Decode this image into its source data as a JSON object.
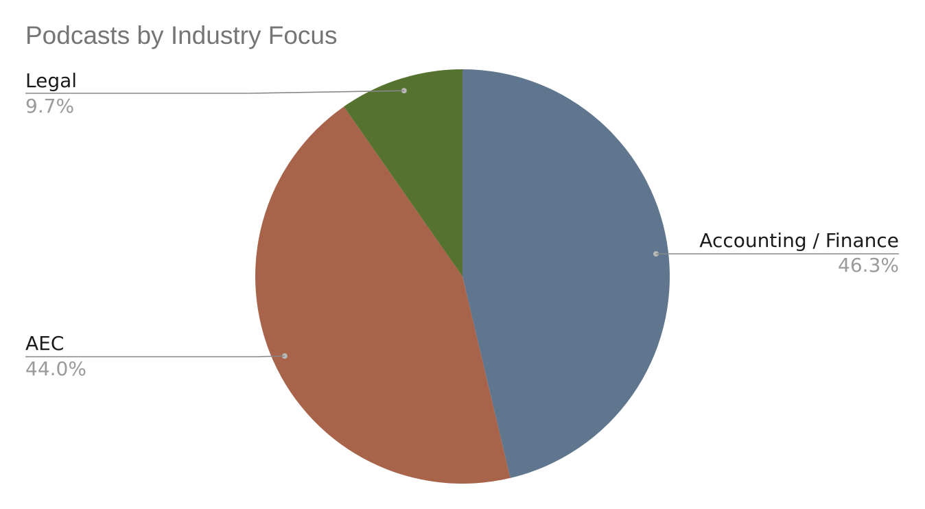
{
  "chart_data": {
    "type": "pie",
    "title": "Podcasts by Industry Focus",
    "slices": [
      {
        "label": "Accounting / Finance",
        "value": 46.3,
        "value_label": "46.3%",
        "color": "#60768e"
      },
      {
        "label": "AEC",
        "value": 44.0,
        "value_label": "44.0%",
        "color": "#a8644b"
      },
      {
        "label": "Legal",
        "value": 9.7,
        "value_label": "9.7%",
        "color": "#55722f"
      }
    ],
    "start_angle": "12 o'clock",
    "direction": "clockwise",
    "legend": "callout labels",
    "colors": {
      "leader_line": "#888888",
      "label_text": "#1a1a1a",
      "percent_text": "#9a9a9a"
    }
  }
}
